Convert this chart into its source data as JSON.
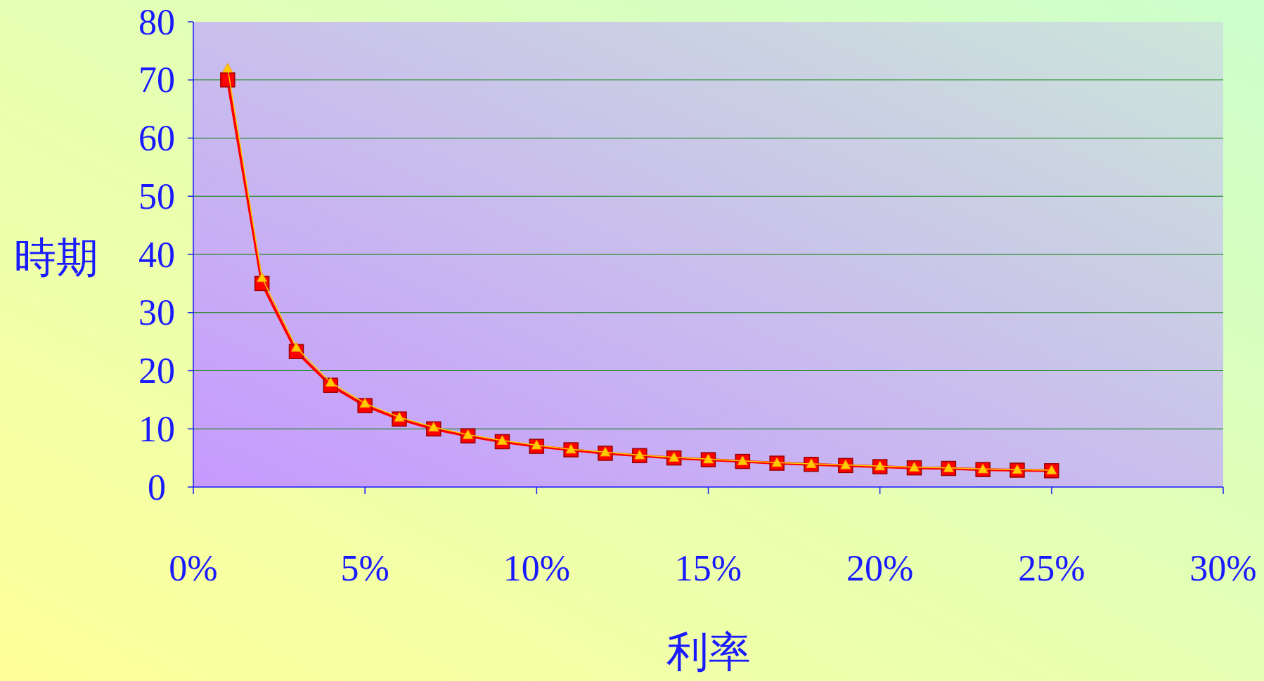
{
  "chart_data": {
    "type": "line",
    "xlabel": "利率",
    "ylabel": "時期",
    "x": [
      1,
      2,
      3,
      4,
      5,
      6,
      7,
      8,
      9,
      10,
      11,
      12,
      13,
      14,
      15,
      16,
      17,
      18,
      19,
      20,
      21,
      22,
      23,
      24,
      25
    ],
    "series": [
      {
        "color": "#ff0000",
        "marker": "square",
        "values": [
          70,
          35,
          23.3,
          17.5,
          14,
          11.7,
          10,
          8.8,
          7.8,
          7,
          6.4,
          5.8,
          5.4,
          5,
          4.7,
          4.4,
          4.1,
          3.9,
          3.7,
          3.5,
          3.3,
          3.2,
          3,
          2.9,
          2.8
        ]
      },
      {
        "color": "#ffcc00",
        "marker": "triangle",
        "values": [
          72,
          36,
          24,
          18,
          14.4,
          12,
          10.3,
          9,
          8,
          7.2,
          6.5,
          6,
          5.5,
          5.1,
          4.8,
          4.5,
          4.2,
          4,
          3.8,
          3.6,
          3.4,
          3.3,
          3.1,
          3,
          2.9
        ]
      }
    ],
    "xlim": [
      0,
      30
    ],
    "xticks": [
      {
        "value": 0,
        "label": "0%"
      },
      {
        "value": 5,
        "label": "5%"
      },
      {
        "value": 10,
        "label": "10%"
      },
      {
        "value": 15,
        "label": "15%"
      },
      {
        "value": 20,
        "label": "20%"
      },
      {
        "value": 25,
        "label": "25%"
      },
      {
        "value": 30,
        "label": "30%"
      }
    ],
    "ylim": [
      0,
      80
    ],
    "yticks": [
      0,
      10,
      20,
      30,
      40,
      50,
      60,
      70,
      80
    ],
    "grid": "y",
    "line_style": "solid"
  }
}
